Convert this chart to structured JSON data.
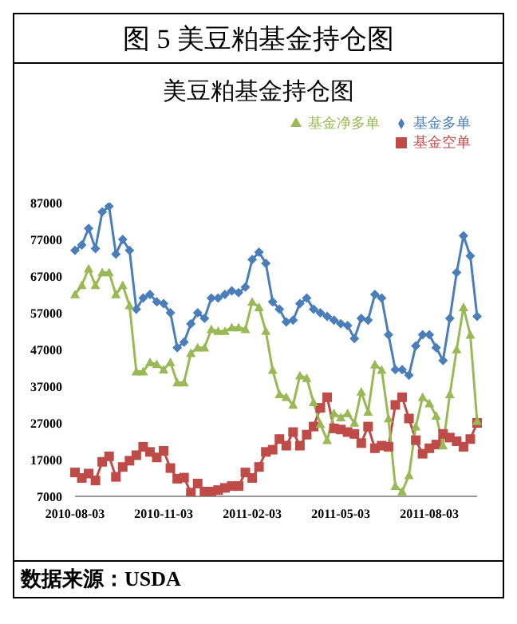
{
  "chart_data": {
    "type": "line",
    "title": "图 5 美豆粕基金持仓图",
    "subtitle": "美豆粕基金持仓图",
    "annotations": [
      "数据来源：USDA"
    ],
    "categories": [
      "2010-08-03",
      null,
      null,
      null,
      null,
      null,
      null,
      null,
      null,
      null,
      null,
      null,
      null,
      "2010-11-03",
      null,
      null,
      null,
      null,
      null,
      null,
      null,
      null,
      null,
      null,
      null,
      null,
      "2011-02-03",
      null,
      null,
      null,
      null,
      null,
      null,
      null,
      null,
      null,
      null,
      null,
      null,
      "2011-05-03",
      null,
      null,
      null,
      null,
      null,
      null,
      null,
      null,
      null,
      null,
      null,
      null,
      "2011-08-03",
      null,
      null,
      null,
      null,
      null,
      null,
      null
    ],
    "series": [
      {
        "name": "基金多单",
        "color": "#4a7ebb",
        "marker": "diamond",
        "values": [
          74000,
          75500,
          80000,
          74500,
          84500,
          86000,
          73000,
          77000,
          74000,
          58000,
          61000,
          62000,
          60000,
          59500,
          57000,
          47500,
          49000,
          54000,
          57000,
          55500,
          61000,
          61000,
          62000,
          63000,
          62500,
          64000,
          71500,
          73500,
          70500,
          60000,
          58000,
          54500,
          55000,
          59500,
          61000,
          58000,
          57000,
          56000,
          55000,
          54000,
          53500,
          50000,
          55500,
          55000,
          62000,
          61000,
          51000,
          41500,
          41500,
          40000,
          48000,
          51000,
          51000,
          47500,
          44000,
          55500,
          68000,
          78000,
          72500,
          56000
        ]
      },
      {
        "name": "基金空单",
        "color": "#be4b48",
        "marker": "square",
        "values": [
          13500,
          12000,
          13200,
          11300,
          16400,
          17900,
          12300,
          15000,
          16700,
          18200,
          20500,
          19100,
          17600,
          19400,
          14700,
          11800,
          12100,
          8000,
          10500,
          8300,
          8300,
          8700,
          9300,
          9800,
          9800,
          13500,
          12000,
          15000,
          19100,
          19700,
          22600,
          20800,
          24500,
          20800,
          23800,
          26000,
          31100,
          34000,
          25500,
          25200,
          24500,
          24000,
          21500,
          26000,
          20100,
          20800,
          20500,
          31900,
          34000,
          28200,
          22300,
          18600,
          20100,
          21100,
          24000,
          23000,
          22000,
          20500,
          22600,
          27000
        ]
      },
      {
        "name": "基金净多单",
        "color": "#98b954",
        "marker": "triangle",
        "values": [
          62000,
          64500,
          69000,
          64500,
          68000,
          68000,
          62000,
          64500,
          59000,
          41000,
          41000,
          43500,
          43000,
          41500,
          43500,
          38000,
          38000,
          46000,
          47500,
          47500,
          52500,
          52000,
          52000,
          53000,
          53000,
          52500,
          60000,
          58500,
          52000,
          41400,
          34800,
          34000,
          31900,
          39900,
          39200,
          32600,
          26700,
          22300,
          29600,
          28500,
          29600,
          27000,
          35500,
          30000,
          42900,
          41400,
          28200,
          9800,
          8300,
          12700,
          26000,
          34000,
          32300,
          28900,
          20800,
          34800,
          47000,
          58500,
          51000,
          27500
        ]
      }
    ],
    "ylim": [
      7000,
      87000
    ],
    "yticks": [
      7000,
      17000,
      27000,
      37000,
      47000,
      57000,
      67000,
      77000,
      87000
    ],
    "grid": false,
    "legend": "top right"
  }
}
